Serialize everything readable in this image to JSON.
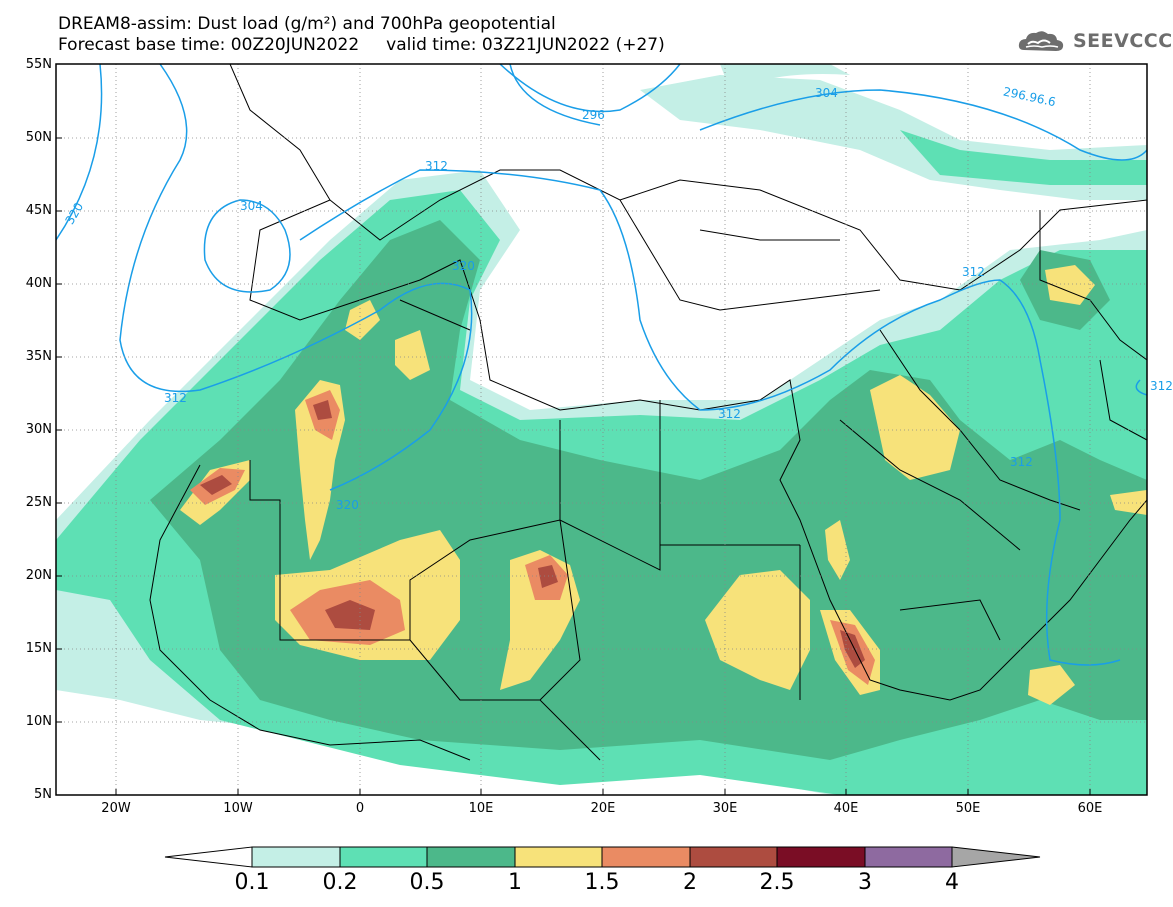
{
  "header": {
    "line1": "DREAM8-assim: Dust load (g/m²) and 700hPa geopotential",
    "line2": "Forecast base time: 00Z20JUN2022     valid time: 03Z21JUN2022 (+27)"
  },
  "logo": {
    "icon": "cloud-logo-icon",
    "text": "SEEVCCC"
  },
  "axes": {
    "lat_labels": [
      "55N",
      "50N",
      "45N",
      "40N",
      "35N",
      "30N",
      "25N",
      "20N",
      "15N",
      "10N",
      "5N"
    ],
    "lon_labels": [
      "20W",
      "10W",
      "0",
      "10E",
      "20E",
      "30E",
      "40E",
      "50E",
      "60E"
    ]
  },
  "contours": {
    "labels": [
      "320",
      "304",
      "312",
      "296",
      "304",
      "296.96.6",
      "312",
      "320",
      "312",
      "312",
      "312",
      "320",
      "312"
    ]
  },
  "colorbar": {
    "labels": [
      "0.1",
      "0.2",
      "0.5",
      "1",
      "1.5",
      "2",
      "2.5",
      "3",
      "4"
    ],
    "colors": [
      "#ffffff",
      "#c4efe6",
      "#5ee0b4",
      "#4cb88a",
      "#f7e27a",
      "#ea8b63",
      "#ad4c40",
      "#7a0d25",
      "#8e6aa0",
      "#a6a6a6"
    ]
  },
  "dust_colors": {
    "c01": "#c4efe6",
    "c02": "#5ee0b4",
    "c05": "#4cb88a",
    "c1": "#f7e27a",
    "c15": "#ea8b63",
    "c2": "#ad4c40",
    "c25": "#7a0d25"
  },
  "contour_color": "#1a9ee8"
}
